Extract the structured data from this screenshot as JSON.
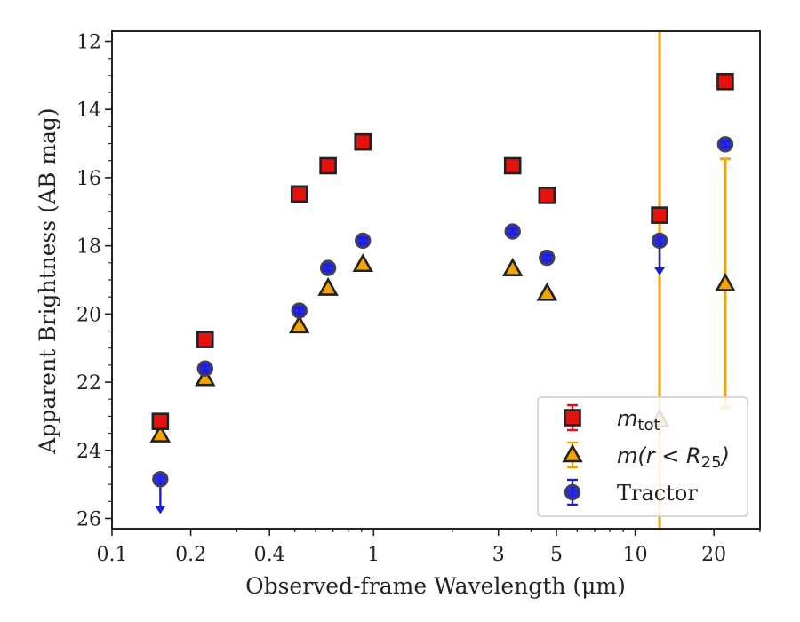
{
  "chart_data": {
    "type": "scatter",
    "xlabel": "Observed-frame Wavelength (μm)",
    "ylabel": "Apparent Brightness (AB mag)",
    "x_scale": "log",
    "xlim": [
      0.1,
      30
    ],
    "ylim": [
      26.3,
      11.7
    ],
    "y_inverted": true,
    "x_ticks": [
      0.1,
      0.2,
      0.4,
      1,
      3,
      5,
      10,
      20
    ],
    "x_tick_labels": [
      "0.1",
      "0.2",
      "0.4",
      "1",
      "3",
      "5",
      "10",
      "20"
    ],
    "y_ticks": [
      12,
      14,
      16,
      18,
      20,
      22,
      24,
      26
    ],
    "y_tick_labels": [
      "12",
      "14",
      "16",
      "18",
      "20",
      "22",
      "24",
      "26"
    ],
    "grid": false,
    "legend_position": "lower-right",
    "series": [
      {
        "name": "m_tot",
        "legend_label": "m_tot",
        "marker": "square",
        "color": "#e8100c",
        "edge_color": "#222222",
        "err_color": "#e8100c",
        "points": [
          {
            "x": 0.153,
            "y": 23.15,
            "err": 0.05
          },
          {
            "x": 0.227,
            "y": 20.75,
            "err": 0.05
          },
          {
            "x": 0.52,
            "y": 16.48,
            "err": 0.05
          },
          {
            "x": 0.67,
            "y": 15.65,
            "err": 0.05
          },
          {
            "x": 0.91,
            "y": 14.95,
            "err": 0.05
          },
          {
            "x": 3.4,
            "y": 15.65,
            "err": 0.05
          },
          {
            "x": 4.6,
            "y": 16.52,
            "err": 0.05
          },
          {
            "x": 12.4,
            "y": 17.1,
            "err": 0.05
          },
          {
            "x": 22.1,
            "y": 13.18,
            "err": 0.05
          }
        ]
      },
      {
        "name": "m(r < R25)",
        "legend_label": "m(r < R25)",
        "marker": "triangle",
        "color": "#f5a300",
        "edge_color": "#222222",
        "err_color": "#f5a300",
        "points": [
          {
            "x": 0.153,
            "y": 23.55,
            "err": 0.05
          },
          {
            "x": 0.227,
            "y": 21.9,
            "err": 0.05
          },
          {
            "x": 0.52,
            "y": 20.35,
            "err": 0.05
          },
          {
            "x": 0.67,
            "y": 19.25,
            "err": 0.05
          },
          {
            "x": 0.91,
            "y": 18.55,
            "err": 0.05
          },
          {
            "x": 3.4,
            "y": 18.68,
            "err": 0.05
          },
          {
            "x": 4.6,
            "y": 19.4,
            "err": 0.05
          },
          {
            "x": 12.4,
            "y": 23.1,
            "err_full": true
          },
          {
            "x": 22.1,
            "y": 19.12,
            "err_low": 15.45,
            "err_high": 22.75
          }
        ]
      },
      {
        "name": "Tractor",
        "legend_label": "Tractor",
        "marker": "circle",
        "color": "#1c1cdc",
        "edge_color": "#444444",
        "err_color": "#1c1cdc",
        "points": [
          {
            "x": 0.153,
            "y": 24.85,
            "upper_limit": true
          },
          {
            "x": 0.227,
            "y": 21.6,
            "err": 0.08
          },
          {
            "x": 0.52,
            "y": 19.9,
            "err": 0.08
          },
          {
            "x": 0.67,
            "y": 18.65,
            "err": 0.08
          },
          {
            "x": 0.91,
            "y": 17.85,
            "err": 0.08
          },
          {
            "x": 3.4,
            "y": 17.58,
            "err": 0.08
          },
          {
            "x": 4.6,
            "y": 18.35,
            "err": 0.08
          },
          {
            "x": 12.4,
            "y": 17.85,
            "upper_limit": true
          },
          {
            "x": 22.1,
            "y": 15.02,
            "err": 0.08
          }
        ]
      }
    ]
  }
}
